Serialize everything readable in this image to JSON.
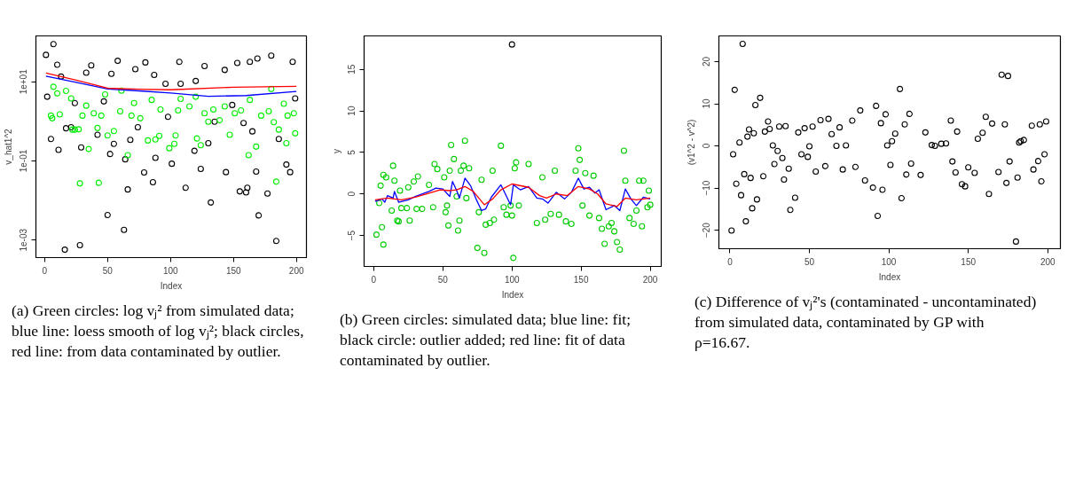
{
  "chart_data": [
    {
      "type": "scatter",
      "xlabel": "Index",
      "ylabel": "v_hat1^2",
      "log": "y",
      "marker": "circle",
      "grid": false,
      "xlim": [
        -6.96,
        207.96
      ],
      "xticks": [
        0,
        50,
        100,
        150,
        200
      ],
      "ylim": [
        0.00036,
        145
      ],
      "yticks": [
        {
          "value": 0.001,
          "label": "1e-03"
        },
        {
          "value": 0.1,
          "label": "1e-01"
        },
        {
          "value": 10,
          "label": "1e+01"
        }
      ],
      "annotations": [
        "(a) Green circles: log vⱼ² from simulated data; blue line: loess smooth of log vⱼ²; black circles, red line: from data contaminated by outlier."
      ],
      "series": [
        {
          "color": "#000000",
          "x": [
            1,
            7,
            2,
            5,
            11,
            10,
            17,
            16,
            28,
            29,
            33,
            37,
            42,
            50,
            52,
            58,
            63,
            64,
            66,
            72,
            80,
            79,
            86,
            88,
            101,
            98,
            107,
            112,
            119,
            124,
            127,
            132,
            135,
            143,
            144,
            153,
            155,
            160,
            161,
            163,
            168,
            169,
            170,
            177,
            180,
            184,
            192,
            195,
            197,
            199,
            186,
            165,
            158,
            149,
            130,
            120,
            96,
            87,
            108,
            74,
            68,
            55,
            53,
            47,
            24,
            21,
            13
          ],
          "values": [
            48,
            90,
            4.2,
            0.36,
            0.19,
            27,
            0.67,
            0.00057,
            0.00074,
            0.22,
            17,
            26,
            0.46,
            0.0043,
            0.15,
            34,
            0.0018,
            0.11,
            0.019,
            21,
            31,
            0.051,
            0.029,
            0.12,
            0.085,
            1.3,
            32,
            0.021,
            0.18,
            0.063,
            25,
            0.0089,
            0.98,
            20,
            0.052,
            30,
            0.017,
            0.016,
            0.021,
            32,
            0.054,
            39,
            0.0042,
            0.015,
            46,
            0.00095,
            0.081,
            0.052,
            32,
            3.8,
            0.36,
            0.56,
            0.91,
            2.6,
            0.28,
            10.5,
            8.9,
            15,
            8.9,
            0.71,
            0.34,
            0.27,
            16,
            3.2,
            2.9,
            0.71,
            13.6
          ]
        },
        {
          "color": "#00ee00",
          "x": [
            7,
            5,
            6,
            10,
            12,
            17,
            21,
            22,
            24,
            27,
            28,
            30,
            33,
            35,
            39,
            42,
            43,
            45,
            48,
            50,
            55,
            61,
            60,
            66,
            69,
            71,
            76,
            82,
            85,
            88,
            91,
            92,
            99,
            103,
            104,
            106,
            108,
            115,
            120,
            121,
            124,
            127,
            130,
            134,
            139,
            143,
            147,
            151,
            156,
            162,
            163,
            168,
            172,
            178,
            180,
            182,
            184,
            186,
            190,
            192,
            193,
            198,
            199
          ],
          "values": [
            7.5,
            1.4,
            1.2,
            5.1,
            1.5,
            5.9,
            3.8,
            0.62,
            0.62,
            0.63,
            0.027,
            1.4,
            2.5,
            0.2,
            1.6,
            0.68,
            0.028,
            1.4,
            4.8,
            0.44,
            0.57,
            6,
            1.8,
            0.14,
            1.4,
            2.9,
            1.2,
            0.33,
            3.5,
            0.35,
            0.43,
            2,
            0.21,
            0.27,
            0.44,
            1.9,
            3.7,
            2.4,
            4.2,
            0.37,
            0.25,
            1.6,
            0.98,
            2,
            1.07,
            2.4,
            0.46,
            1.6,
            1.9,
            0.14,
            3.5,
            0.23,
            1.4,
            1.8,
            6.6,
            0.96,
            0.03,
            0.62,
            2.8,
            0.28,
            1.4,
            1.6,
            0.5
          ]
        },
        {
          "type": "line",
          "marker": "none",
          "color": "#0000ff",
          "x": [
            1,
            25,
            50,
            75,
            100,
            130,
            160,
            200
          ],
          "values": [
            14,
            9.7,
            6.6,
            5.9,
            5.2,
            4.3,
            4.5,
            5.7
          ]
        },
        {
          "type": "line",
          "marker": "none",
          "color": "#ff0000",
          "x": [
            1,
            25,
            50,
            75,
            100,
            150,
            200
          ],
          "values": [
            16.6,
            11,
            6.9,
            6.5,
            6.3,
            7.3,
            7.7
          ]
        }
      ]
    },
    {
      "type": "scatter",
      "xlabel": "Index",
      "ylabel": "y",
      "marker": "circle",
      "grid": false,
      "xlim": [
        -6.96,
        207.96
      ],
      "xticks": [
        0,
        50,
        100,
        150,
        200
      ],
      "ylim": [
        -8.73,
        19.03
      ],
      "yticks": [
        -5,
        0,
        5,
        10,
        15
      ],
      "annotations": [
        "(b) Green circles: simulated data; blue line: fit; black circle: outlier added; red line: fit of data contaminated by outlier."
      ],
      "series": [
        {
          "color": "#000000",
          "x": [
            100
          ],
          "values": [
            18
          ]
        },
        {
          "color": "#00cc00",
          "x": [
            2,
            4,
            5,
            6,
            7,
            7,
            9,
            13,
            14,
            15,
            17,
            18,
            19,
            20,
            24,
            25,
            26,
            29,
            31,
            32,
            35,
            40,
            43,
            44,
            46,
            51,
            52,
            53,
            54,
            55,
            56,
            58,
            60,
            61,
            62,
            63,
            65,
            66,
            67,
            69,
            75,
            76,
            78,
            80,
            81,
            84,
            86,
            87,
            92,
            94,
            96,
            99,
            100,
            101,
            102,
            103,
            105,
            112,
            118,
            122,
            124,
            128,
            131,
            134,
            139,
            143,
            146,
            148,
            149,
            151,
            153,
            156,
            159,
            163,
            165,
            167,
            170,
            172,
            174,
            176,
            178,
            181,
            182,
            185,
            188,
            190,
            192,
            194,
            195,
            198,
            199,
            200
          ],
          "values": [
            -4.9,
            -1.1,
            1.0,
            -4.0,
            2.3,
            -6.1,
            2.0,
            -2.0,
            3.4,
            1.6,
            -3.2,
            -3.3,
            0.4,
            -1.7,
            -1.7,
            0.8,
            -3.2,
            1.5,
            -1.8,
            2.1,
            -1.8,
            1.1,
            -1.6,
            3.6,
            3.0,
            2.0,
            -2.2,
            -1.4,
            -3.8,
            2.8,
            5.9,
            4.2,
            -0.3,
            -4.4,
            -3.2,
            2.8,
            3.4,
            6.4,
            -0.5,
            3.1,
            -6.5,
            -2.2,
            1.7,
            -7.1,
            -3.7,
            -3.5,
            2.8,
            -3.1,
            5.8,
            -1.6,
            -2.5,
            -1.4,
            -2.6,
            -7.7,
            3.1,
            3.8,
            -1.4,
            3.6,
            -3.5,
            2.0,
            -3.1,
            -2.4,
            2.8,
            -2.5,
            -3.3,
            -3.6,
            2.8,
            5.5,
            4.1,
            -1.4,
            2.5,
            -2.6,
            2.2,
            -2.9,
            -4.2,
            -6.0,
            -3.9,
            -3.5,
            -4.5,
            -5.8,
            -6.7,
            5.2,
            1.6,
            -2.9,
            -3.6,
            -2.0,
            1.6,
            -3.9,
            1.6,
            -1.6,
            0.4,
            -1.3
          ]
        },
        {
          "type": "line",
          "marker": "none",
          "color": "#0000ff",
          "x": [
            1,
            6,
            8,
            10,
            14,
            15,
            18,
            25,
            30,
            40,
            45,
            50,
            55,
            57,
            60,
            62,
            66,
            70,
            74,
            78,
            81,
            85,
            92,
            99,
            101,
            106,
            112,
            118,
            122,
            126,
            132,
            138,
            143,
            148,
            152,
            156,
            160,
            163,
            168,
            174,
            178,
            182,
            186,
            190,
            195,
            200
          ],
          "values": [
            -0.9,
            -0.6,
            -1.0,
            -0.2,
            -0.5,
            0.3,
            -1.0,
            -0.7,
            -0.3,
            0.3,
            0.7,
            0.6,
            -0.3,
            1.5,
            0.4,
            -0.5,
            1.9,
            1.0,
            -0.6,
            -2.0,
            -1.8,
            -0.4,
            1.1,
            -1.3,
            1.1,
            0.5,
            0.9,
            -0.5,
            -0.6,
            -1.1,
            0.2,
            -0.6,
            0.2,
            1.9,
            0.6,
            0.8,
            0.1,
            0.5,
            -1.9,
            -1.4,
            -2.0,
            0.6,
            -0.6,
            -1.4,
            -0.4,
            -0.6
          ]
        },
        {
          "type": "line",
          "marker": "none",
          "color": "#ff0000",
          "x": [
            1,
            10,
            20,
            30,
            40,
            48,
            55,
            60,
            66,
            72,
            80,
            86,
            92,
            100,
            112,
            120,
            125,
            132,
            140,
            148,
            156,
            162,
            168,
            176,
            182,
            190,
            200
          ],
          "values": [
            -0.7,
            -0.5,
            -0.7,
            -0.4,
            0.1,
            0.5,
            0.4,
            0.5,
            0.9,
            0.3,
            -1.3,
            -0.6,
            0.5,
            1.2,
            0.8,
            -0.2,
            -0.5,
            0,
            -0.2,
            0.9,
            0.6,
            0,
            -1.2,
            -1.5,
            -0.5,
            -0.7,
            -0.5
          ]
        }
      ]
    },
    {
      "type": "scatter",
      "xlabel": "Index",
      "ylabel": "(v1^2 - v^2)",
      "marker": "circle",
      "grid": false,
      "xlim": [
        -6.96,
        207.96
      ],
      "xticks": [
        0,
        50,
        100,
        150,
        200
      ],
      "ylim": [
        -24.4,
        26.1
      ],
      "yticks": [
        -20,
        -10,
        0,
        10,
        20
      ],
      "annotations": [
        "(c) Difference of vⱼ²'s (contaminated - uncontaminated) from simulated data, contaminated by GP with ρ=16.67."
      ],
      "series": [
        {
          "color": "#000000",
          "x": [
            1,
            2,
            3,
            4,
            6,
            7,
            8,
            9,
            10,
            11,
            12,
            13,
            14,
            15,
            16,
            17,
            19,
            21,
            22,
            24,
            25,
            27,
            28,
            30,
            31,
            33,
            34,
            35,
            37,
            38,
            41,
            43,
            45,
            47,
            49,
            50,
            52,
            54,
            57,
            60,
            62,
            64,
            67,
            69,
            71,
            73,
            77,
            79,
            82,
            85,
            90,
            92,
            93,
            95,
            96,
            98,
            99,
            101,
            102,
            104,
            107,
            108,
            110,
            111,
            113,
            114,
            120,
            123,
            127,
            129,
            133,
            136,
            139,
            140,
            142,
            143,
            146,
            148,
            150,
            154,
            156,
            159,
            161,
            163,
            165,
            169,
            171,
            173,
            174,
            175,
            176,
            180,
            181,
            182,
            183,
            185,
            190,
            191,
            194,
            195,
            196,
            198,
            199
          ],
          "values": [
            -20.1,
            -2.0,
            13.3,
            -9.0,
            0.8,
            -11.7,
            24.2,
            -6.7,
            -17.9,
            2.2,
            3.9,
            -7.6,
            -14.8,
            3.0,
            9.7,
            -12.7,
            11.4,
            -7.2,
            3.4,
            5.8,
            4.0,
            0.1,
            -4.3,
            -1.2,
            4.6,
            -2.9,
            -8.0,
            4.7,
            -5.4,
            -15.2,
            -12.3,
            3.2,
            -2.0,
            4.2,
            -2.6,
            -0.1,
            4.6,
            -6.1,
            6.1,
            -4.8,
            6.4,
            2.8,
            0,
            4.4,
            -5.6,
            0.1,
            6.0,
            -5.0,
            8.4,
            -8.2,
            -9.9,
            9.5,
            -16.6,
            5.4,
            -10.4,
            7.5,
            0.1,
            -4.5,
            1.1,
            2.9,
            13.5,
            -12.4,
            5.1,
            -6.8,
            7.6,
            -4.2,
            -6.9,
            3.2,
            0.2,
            0,
            0.5,
            0.6,
            6.0,
            -3.7,
            -6.3,
            3.4,
            -9.1,
            -9.6,
            -5.1,
            -6.4,
            1.7,
            3.1,
            6.9,
            -11.4,
            5.3,
            -6.2,
            16.9,
            5.1,
            -8.8,
            16.6,
            -3.7,
            -22.7,
            -7.5,
            0.8,
            1.1,
            1.4,
            4.8,
            -5.6,
            -3.6,
            5.1,
            -8.4,
            -2.0,
            5.8
          ]
        }
      ]
    }
  ]
}
